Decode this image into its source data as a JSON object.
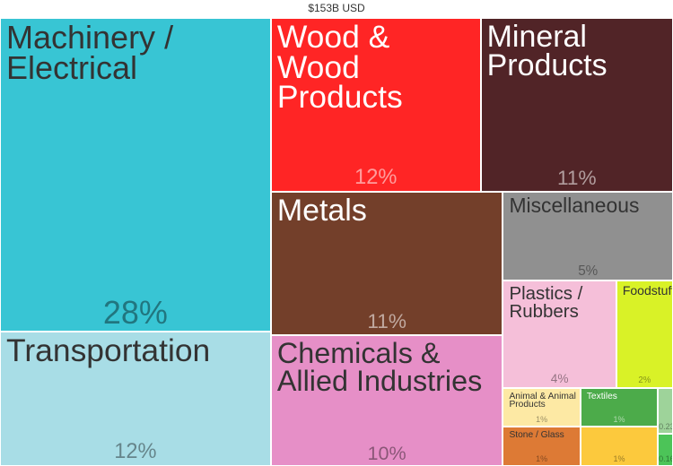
{
  "chart_data": {
    "type": "treemap",
    "title": "$153B USD",
    "categories": [
      "Machinery / Electrical",
      "Transportation",
      "Wood & Wood Products",
      "Mineral Products",
      "Metals",
      "Chemicals & Allied Industries",
      "Miscellaneous",
      "Plastics / Rubbers",
      "Foodstuffs",
      "Animal & Animal Products",
      "Stone / Glass",
      "Textiles",
      null,
      null,
      null
    ],
    "values": [
      28,
      12,
      12,
      11,
      11,
      10,
      5,
      4,
      2,
      1,
      1,
      1,
      1,
      0.23,
      0.16
    ],
    "value_labels": [
      "28%",
      "12%",
      "12%",
      "11%",
      "11%",
      "10%",
      "5%",
      "4%",
      "2%",
      "1%",
      "1%",
      "1%",
      "1%",
      "0.23%",
      "0.16%"
    ],
    "colors": [
      "#38c5d4",
      "#a8dde6",
      "#ff2525",
      "#512427",
      "#733f2a",
      "#e68fc7",
      "#909090",
      "#f5bfd9",
      "#d9f227",
      "#fde9a4",
      "#dd7a35",
      "#4cab4a",
      "#fcc93d",
      "#9ed39a",
      "#4cc458"
    ]
  }
}
